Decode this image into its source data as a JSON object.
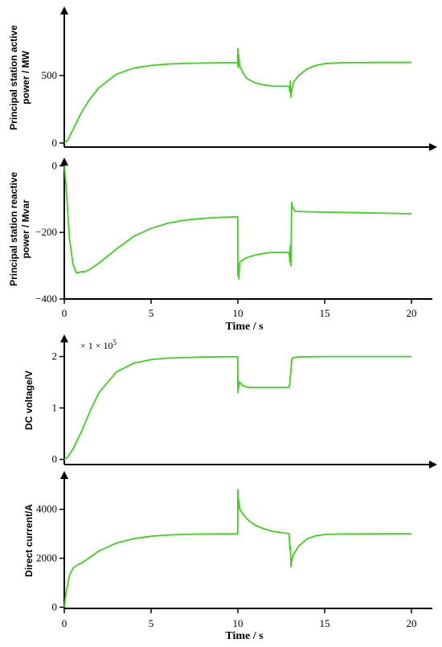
{
  "colors": {
    "line": "#3ecf1f",
    "axis": "#000000"
  },
  "figures": [
    {
      "x_axis_label": "Time / s",
      "x_ticks": [
        "0",
        "5",
        "10",
        "15",
        "20"
      ],
      "panels": [
        "active",
        "reactive"
      ]
    },
    {
      "x_axis_label": "Time / s",
      "x_ticks": [
        "0",
        "5",
        "10",
        "15",
        "20"
      ],
      "panels": [
        "voltage",
        "current"
      ]
    }
  ],
  "chart_data": [
    {
      "id": "active",
      "type": "line",
      "title": "",
      "ylabel": "Principal station active power / MW",
      "xlabel": "",
      "xlim": [
        0,
        20
      ],
      "ylim": [
        -30,
        1000
      ],
      "y_ticks": [
        0,
        500
      ],
      "y_tick_labels": [
        "0",
        "500"
      ],
      "x_ticks_shown": false,
      "series": [
        {
          "color": "#3ecf1f",
          "x": [
            0,
            0.2,
            0.5,
            1,
            1.5,
            2,
            3,
            4,
            5,
            6,
            7,
            8,
            9,
            9.99,
            10.0,
            10.01,
            10.05,
            10.1,
            10.3,
            10.5,
            11,
            11.5,
            12,
            12.5,
            12.95,
            13.0,
            13.02,
            13.05,
            13.1,
            13.15,
            13.2,
            13.5,
            14,
            14.5,
            15,
            16,
            17,
            18,
            19,
            20
          ],
          "y": [
            0,
            20,
            100,
            230,
            330,
            410,
            510,
            555,
            575,
            585,
            590,
            593,
            595,
            595,
            700,
            560,
            650,
            570,
            520,
            480,
            445,
            430,
            422,
            420,
            420,
            380,
            460,
            340,
            390,
            420,
            450,
            500,
            550,
            575,
            588,
            595,
            596,
            597,
            597,
            597
          ]
        }
      ]
    },
    {
      "id": "reactive",
      "type": "line",
      "title": "",
      "ylabel": "Principal station reactive power / Mvar",
      "xlabel": "Time / s",
      "xlim": [
        0,
        20
      ],
      "ylim": [
        -400,
        20
      ],
      "y_ticks": [
        0,
        -200,
        -400
      ],
      "y_tick_labels": [
        "0",
        "−200",
        "−400"
      ],
      "x_ticks_shown": true,
      "series": [
        {
          "color": "#3ecf1f",
          "x": [
            0,
            0.1,
            0.3,
            0.5,
            0.7,
            1.0,
            1.2,
            1.5,
            2,
            3,
            4,
            5,
            6,
            7,
            8,
            9,
            9.99,
            10.0,
            10.02,
            10.05,
            10.1,
            10.3,
            10.5,
            11,
            11.5,
            12,
            12.5,
            12.95,
            13.0,
            13.02,
            13.05,
            13.1,
            13.15,
            13.3,
            14,
            15,
            16,
            17,
            18,
            19,
            20
          ],
          "y": [
            0,
            -60,
            -220,
            -295,
            -322,
            -318,
            -318,
            -310,
            -292,
            -250,
            -212,
            -188,
            -172,
            -163,
            -158,
            -155,
            -153,
            -330,
            -300,
            -340,
            -290,
            -282,
            -276,
            -268,
            -263,
            -260,
            -260,
            -260,
            -290,
            -240,
            -300,
            -110,
            -125,
            -137,
            -138,
            -139,
            -140,
            -141,
            -142,
            -143,
            -144
          ]
        }
      ]
    },
    {
      "id": "voltage",
      "type": "line",
      "title": "",
      "ylabel": "DC voltage/V",
      "xlabel": "",
      "multiplier_label": "× 1 × 10",
      "multiplier_exponent": "5",
      "xlim": [
        0,
        20
      ],
      "ylim": [
        -0.1,
        2.4
      ],
      "y_ticks": [
        0,
        1,
        2
      ],
      "y_tick_labels": [
        "0",
        "1",
        "2"
      ],
      "x_ticks_shown": false,
      "series": [
        {
          "color": "#3ecf1f",
          "x": [
            0,
            0.2,
            0.5,
            1,
            1.5,
            2,
            3,
            4,
            5,
            6,
            7,
            8,
            9,
            9.99,
            10.0,
            10.02,
            10.05,
            10.1,
            10.3,
            10.6,
            11,
            12,
            12.95,
            13.0,
            13.02,
            13.05,
            13.1,
            13.2,
            13.5,
            14,
            15,
            16,
            17,
            18,
            19,
            20
          ],
          "y": [
            0,
            0.05,
            0.2,
            0.55,
            0.95,
            1.3,
            1.7,
            1.87,
            1.94,
            1.97,
            1.98,
            1.99,
            1.995,
            1.995,
            1.3,
            1.55,
            1.4,
            1.5,
            1.43,
            1.4,
            1.4,
            1.4,
            1.4,
            1.5,
            1.6,
            1.7,
            1.95,
            1.98,
            1.99,
            1.995,
            2.0,
            2.0,
            2.0,
            2.0,
            2.0,
            2.0
          ]
        }
      ]
    },
    {
      "id": "current",
      "type": "line",
      "title": "",
      "ylabel": "Direct current/A",
      "xlabel": "Time / s",
      "xlim": [
        0,
        20
      ],
      "ylim": [
        -50,
        5500
      ],
      "y_ticks": [
        0,
        2000,
        4000
      ],
      "y_tick_labels": [
        "0",
        "2000",
        "4000"
      ],
      "x_ticks_shown": true,
      "series": [
        {
          "color": "#3ecf1f",
          "x": [
            0,
            0.1,
            0.3,
            0.5,
            0.8,
            1,
            1.5,
            2,
            3,
            4,
            5,
            6,
            7,
            8,
            9,
            9.99,
            10.0,
            10.02,
            10.05,
            10.1,
            10.3,
            10.6,
            11,
            11.5,
            12,
            12.5,
            12.95,
            13.0,
            13.03,
            13.06,
            13.1,
            13.2,
            13.5,
            14,
            14.5,
            15,
            16,
            17,
            18,
            19,
            20
          ],
          "y": [
            0,
            600,
            1300,
            1600,
            1750,
            1800,
            2050,
            2300,
            2620,
            2800,
            2900,
            2950,
            2975,
            2990,
            2995,
            2995,
            4800,
            4100,
            4400,
            4000,
            3800,
            3550,
            3350,
            3200,
            3100,
            3050,
            3000,
            2350,
            2500,
            1650,
            1900,
            2150,
            2500,
            2800,
            2920,
            2970,
            2990,
            2995,
            2998,
            3000,
            3000
          ]
        }
      ]
    }
  ]
}
